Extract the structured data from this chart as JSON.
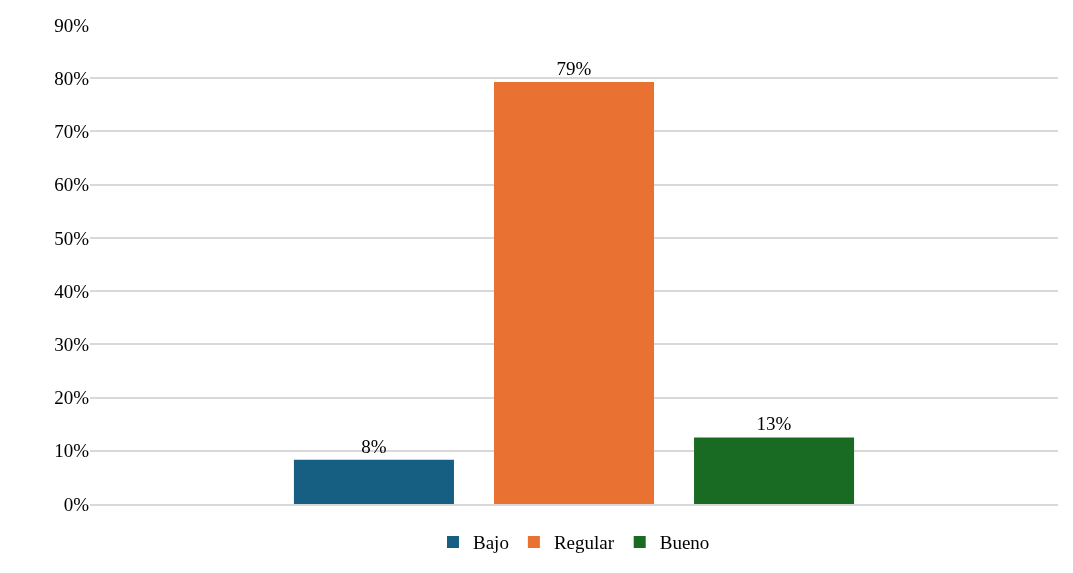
{
  "chart_data": {
    "type": "bar",
    "categories": [
      null
    ],
    "series": [
      {
        "name": "Bajo",
        "color": "#175f82",
        "values": [
          8.3
        ],
        "value_labels": [
          "8%"
        ]
      },
      {
        "name": "Regular",
        "color": "#e97132",
        "values": [
          79.3
        ],
        "value_labels": [
          "79%"
        ]
      },
      {
        "name": "Bueno",
        "color": "#196b24",
        "values": [
          12.5
        ],
        "value_labels": [
          "13%"
        ]
      }
    ],
    "ylim": [
      0,
      90
    ],
    "yticks": [
      {
        "value": 0,
        "label": "0%"
      },
      {
        "value": 10,
        "label": "10%"
      },
      {
        "value": 20,
        "label": "20%"
      },
      {
        "value": 30,
        "label": "30%"
      },
      {
        "value": 40,
        "label": "40%"
      },
      {
        "value": 50,
        "label": "50%"
      },
      {
        "value": 60,
        "label": "60%"
      },
      {
        "value": 70,
        "label": "70%"
      },
      {
        "value": 80,
        "label": "80%"
      },
      {
        "value": 90,
        "label": "90%"
      }
    ],
    "grid": "y",
    "legend": "bottom"
  }
}
